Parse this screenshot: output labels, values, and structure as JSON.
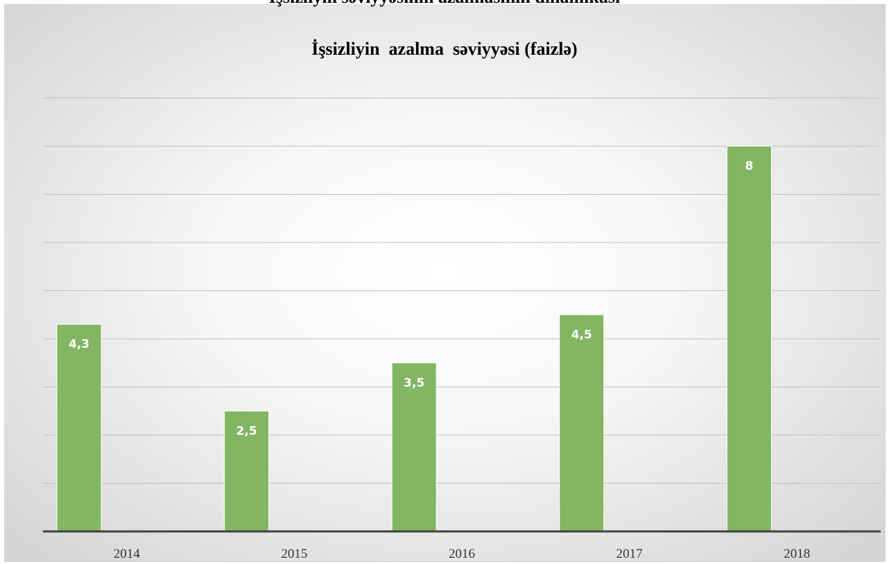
{
  "page_heading_partial": "İşsizliyin səviyyəsinin azalmasının dinamikası",
  "chart_data": {
    "type": "bar",
    "title": "İşsizliyin  azalma  səviyyəsi (faizlə)",
    "categories": [
      "2014",
      "2015",
      "2016",
      "2017",
      "2018"
    ],
    "values": [
      4.3,
      2.5,
      3.5,
      4.5,
      8
    ],
    "value_labels": [
      "4,3",
      "2,5",
      "3,5",
      "4,5",
      "8"
    ],
    "ylim": [
      0,
      9
    ],
    "ytick_step": 1,
    "show_y_tick_labels": false,
    "grid": true,
    "legend": "none",
    "bar_color": "#82b662",
    "bar_label_color": "#ffffff",
    "gridline_color": "#bfbfbf",
    "axis_color": "#404040"
  }
}
